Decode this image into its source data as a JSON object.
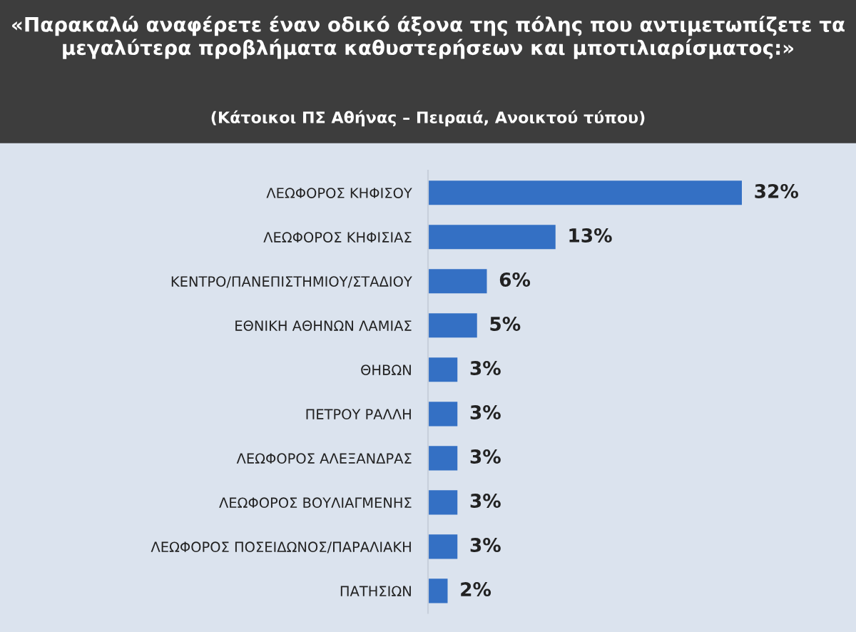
{
  "chart_data": {
    "type": "bar",
    "orientation": "horizontal",
    "title": "«Παρακαλώ αναφέρετε έναν οδικό άξονα της πόλης που αντιμετωπίζετε τα μεγαλύτερα προβλήματα καθυστερήσεων και μποτιλιαρίσματος:»",
    "subtitle": "(Κάτοικοι ΠΣ Αθήνας – Πειραιά, Ανοικτού τύπου)",
    "categories": [
      "ΛΕΩΦΟΡΟΣ ΚΗΦΙΣΟΥ",
      "ΛΕΩΦΟΡΟΣ ΚΗΦΙΣΙΑΣ",
      "ΚΕΝΤΡΟ/ΠΑΝΕΠΙΣΤΗΜΙΟΥ/ΣΤΑΔΙΟΥ",
      "ΕΘΝΙΚΗ ΑΘΗΝΩΝ ΛΑΜΙΑΣ",
      "ΘΗΒΩΝ",
      "ΠΕΤΡΟΥ ΡΑΛΛΗ",
      "ΛΕΩΦΟΡΟΣ ΑΛΕΞΑΝΔΡΑΣ",
      "ΛΕΩΦΟΡΟΣ ΒΟΥΛΙΑΓΜΕΝΗΣ",
      "ΛΕΩΦΟΡΟΣ ΠΟΣΕΙΔΩΝΟΣ/ΠΑΡΑΛΙΑΚΗ",
      "ΠΑΤΗΣΙΩΝ"
    ],
    "values": [
      32,
      13,
      6,
      5,
      3,
      3,
      3,
      3,
      3,
      2
    ],
    "value_labels": [
      "32%",
      "13%",
      "6%",
      "5%",
      "3%",
      "3%",
      "3%",
      "3%",
      "3%",
      "2%"
    ],
    "color": "#3470c4",
    "grid": false,
    "legend": false,
    "tick_labels": "y"
  }
}
